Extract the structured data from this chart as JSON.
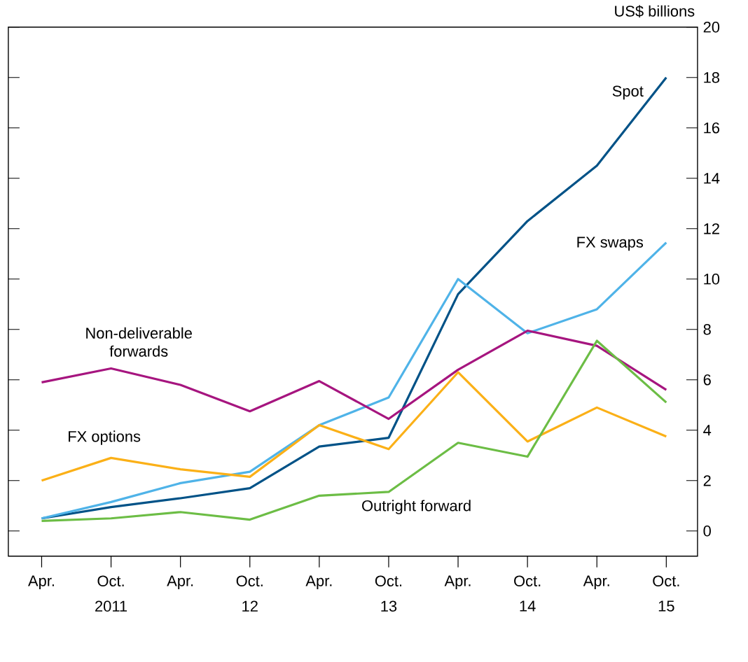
{
  "chart_data": {
    "type": "line",
    "ylabel": "US$ billions",
    "categories": [
      "Apr.",
      "Oct.",
      "Apr.",
      "Oct.",
      "Apr.",
      "Oct.",
      "Apr.",
      "Oct.",
      "Apr.",
      "Oct."
    ],
    "annotations": [
      "2011",
      "12",
      "13",
      "14",
      "15"
    ],
    "series": [
      {
        "name": "Spot",
        "color": "#005287",
        "values": [
          0.5,
          0.95,
          1.3,
          1.7,
          3.35,
          3.7,
          9.4,
          12.3,
          14.5,
          18.0
        ]
      },
      {
        "name": "FX swaps",
        "color": "#4fb3e8",
        "values": [
          0.5,
          1.15,
          1.9,
          2.35,
          4.2,
          5.3,
          10.0,
          7.85,
          8.8,
          11.45
        ]
      },
      {
        "name": "Non-deliverable forwards",
        "color": "#a6157f",
        "values": [
          5.9,
          6.45,
          5.8,
          4.75,
          5.95,
          4.45,
          6.4,
          7.95,
          7.35,
          5.6
        ]
      },
      {
        "name": "FX options",
        "color": "#fbb017",
        "values": [
          2.0,
          2.9,
          2.45,
          2.15,
          4.2,
          3.25,
          6.3,
          3.55,
          4.9,
          3.75
        ]
      },
      {
        "name": "Outright forward",
        "color": "#6cbd45",
        "values": [
          0.4,
          0.5,
          0.75,
          0.45,
          1.4,
          1.55,
          3.5,
          2.95,
          7.55,
          5.1
        ]
      }
    ],
    "ylim": [
      -1,
      20
    ],
    "yticks": [
      0,
      2,
      4,
      6,
      8,
      10,
      12,
      14,
      16,
      18,
      20
    ]
  }
}
